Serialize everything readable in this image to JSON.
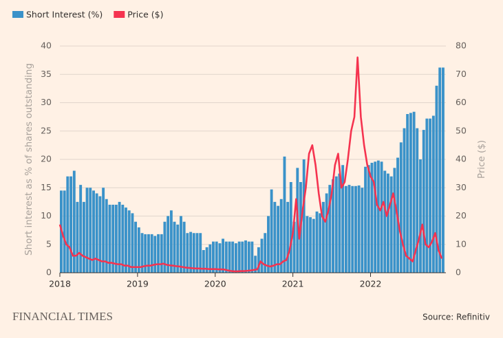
{
  "chart_data": {
    "type": "bar_line",
    "y_label": "Short interest as % of shares outstanding",
    "y2_label": "Price ($)",
    "source": "Source: Refinitiv",
    "brand": "FINANCIAL TIMES",
    "x": [
      2018,
      2018.042,
      2018.083,
      2018.125,
      2018.167,
      2018.208,
      2018.25,
      2018.292,
      2018.333,
      2018.375,
      2018.417,
      2018.458,
      2018.5,
      2018.542,
      2018.583,
      2018.625,
      2018.667,
      2018.708,
      2018.75,
      2018.792,
      2018.833,
      2018.875,
      2018.917,
      2018.958,
      2019,
      2019.042,
      2019.083,
      2019.125,
      2019.167,
      2019.208,
      2019.25,
      2019.292,
      2019.333,
      2019.375,
      2019.417,
      2019.458,
      2019.5,
      2019.542,
      2019.583,
      2019.625,
      2019.667,
      2019.708,
      2019.75,
      2019.792,
      2019.833,
      2019.875,
      2019.917,
      2019.958,
      2020,
      2020.042,
      2020.083,
      2020.125,
      2020.167,
      2020.208,
      2020.25,
      2020.292,
      2020.333,
      2020.375,
      2020.417,
      2020.458,
      2020.5,
      2020.542,
      2020.583,
      2020.625,
      2020.667,
      2020.708,
      2020.75,
      2020.792,
      2020.833,
      2020.875,
      2020.917,
      2020.958,
      2021,
      2021.042,
      2021.083,
      2021.125,
      2021.167,
      2021.208,
      2021.25,
      2021.292,
      2021.333,
      2021.375,
      2021.417,
      2021.458,
      2021.5,
      2021.542,
      2021.583,
      2021.625,
      2021.667,
      2021.708,
      2021.75,
      2021.792,
      2021.833,
      2021.875,
      2021.917,
      2021.958,
      2022,
      2022.042,
      2022.083,
      2022.125,
      2022.167,
      2022.208,
      2022.25,
      2022.292,
      2022.333,
      2022.375,
      2022.417,
      2022.458,
      2022.5,
      2022.542,
      2022.583,
      2022.625,
      2022.667,
      2022.708,
      2022.75,
      2022.792,
      2022.833,
      2022.875,
      2022.917
    ],
    "series": [
      {
        "name": "Short Interest (%)",
        "color": "#3a92c9",
        "kind": "bar",
        "values": [
          14.5,
          14.5,
          17,
          17,
          18,
          12.5,
          15.5,
          12.5,
          15,
          15,
          14.5,
          14,
          13.5,
          15,
          13,
          12,
          12,
          12,
          12.5,
          12,
          11.5,
          11,
          10.5,
          9,
          8,
          7,
          6.8,
          6.8,
          6.8,
          6.5,
          6.8,
          6.8,
          9,
          10,
          11,
          9,
          8.5,
          10,
          9,
          7,
          7.2,
          7,
          7,
          7,
          4,
          4.5,
          5,
          5.5,
          5.5,
          5.2,
          6,
          5.5,
          5.5,
          5.5,
          5.2,
          5.5,
          5.5,
          5.7,
          5.5,
          5.5,
          3,
          4.5,
          6,
          7,
          10,
          14.7,
          12.5,
          11.8,
          13,
          20.5,
          12.5,
          16,
          9,
          18.5,
          16,
          20,
          10,
          9.8,
          9.5,
          10.8,
          10.5,
          12.5,
          14,
          15.5,
          16.5,
          17,
          17.5,
          19,
          15.3,
          15.5,
          15.3,
          15.3,
          15.4,
          15,
          18.7,
          19,
          19.4,
          19.6,
          19.8,
          19.6,
          18,
          17.5,
          17,
          18.5,
          20.3,
          23,
          25.5,
          28,
          28.2,
          28.4,
          25.5,
          20,
          25.2,
          27.2,
          27.2,
          27.7,
          33,
          36.2,
          36.2
        ]
      },
      {
        "name": "Price ($)",
        "color": "#f5334f",
        "kind": "line",
        "axis": "y2",
        "values": [
          17,
          13,
          10,
          9,
          6,
          6,
          7,
          6,
          5.5,
          5,
          4.5,
          5,
          4.5,
          4,
          4,
          3.5,
          3.5,
          3.2,
          3,
          3,
          2.5,
          2.5,
          2,
          2,
          2,
          2,
          2.3,
          2.5,
          2.5,
          2.8,
          3,
          3,
          3.2,
          2.8,
          2.6,
          2.5,
          2.3,
          2.2,
          2,
          1.8,
          1.7,
          1.6,
          1.5,
          1.5,
          1.4,
          1.4,
          1.3,
          1.3,
          1.3,
          1.2,
          1.2,
          1.1,
          0.8,
          0.6,
          0.5,
          0.5,
          0.6,
          0.6,
          0.7,
          0.8,
          1,
          1.2,
          4,
          3,
          2.5,
          2.2,
          2.5,
          3,
          3,
          4,
          4.5,
          8,
          14,
          26,
          12,
          22,
          30,
          42,
          45,
          38,
          28,
          20,
          18,
          22,
          28,
          38,
          42,
          30,
          32,
          40,
          50,
          55,
          76,
          55,
          45,
          38,
          34,
          32,
          24,
          22,
          25,
          20,
          24,
          28,
          22,
          15,
          10,
          6,
          5,
          4,
          8,
          12,
          17,
          10,
          9,
          11,
          14,
          8,
          5
        ]
      }
    ],
    "xlim": [
      2018,
      2022.97
    ],
    "xticks": [
      2018,
      2019,
      2020,
      2021,
      2022
    ],
    "ylim": [
      0,
      40
    ],
    "yticks": [
      0,
      5,
      10,
      15,
      20,
      25,
      30,
      35,
      40
    ],
    "y2lim": [
      0,
      80
    ],
    "y2ticks": [
      0,
      10,
      20,
      30,
      40,
      50,
      60,
      70,
      80
    ],
    "grid": true
  }
}
